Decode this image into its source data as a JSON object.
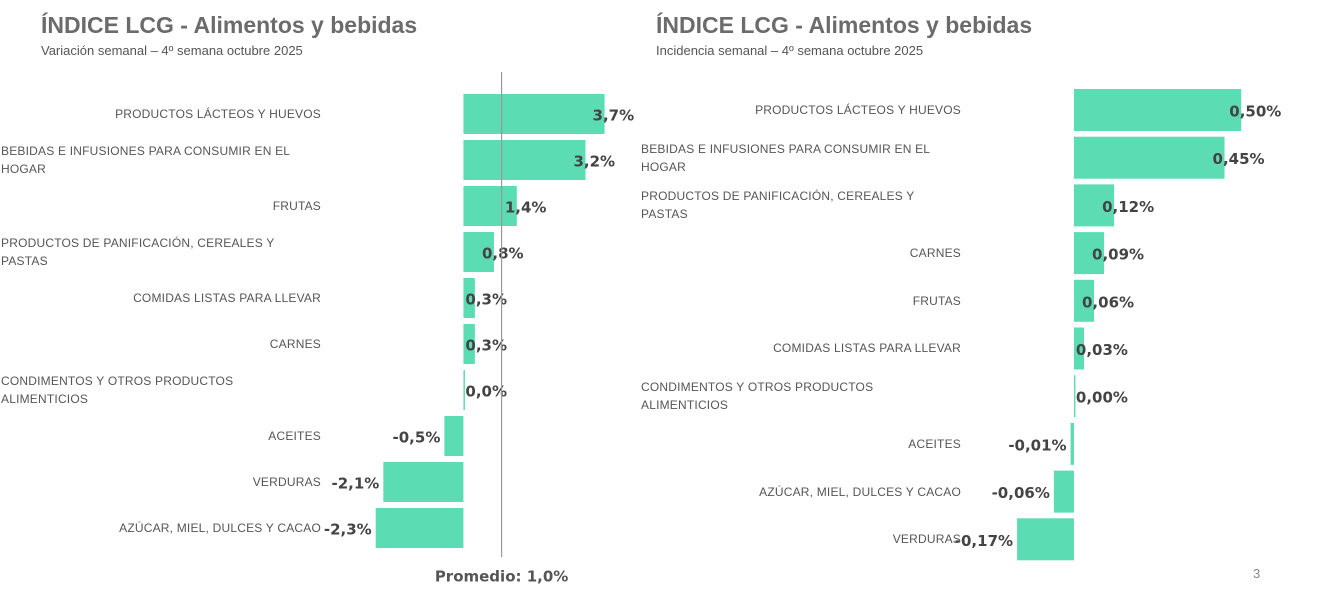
{
  "chart_data": [
    {
      "type": "hbar",
      "title": "ÍNDICE LCG - Alimentos y bebidas",
      "subtitle": "Variación semanal – 4º semana octubre 2025",
      "categories": [
        "PRODUCTOS LÁCTEOS Y HUEVOS",
        "BEBIDAS E INFUSIONES PARA CONSUMIR EN EL HOGAR",
        "FRUTAS",
        "PRODUCTOS DE PANIFICACIÓN, CEREALES Y PASTAS",
        "COMIDAS LISTAS PARA LLEVAR",
        "CARNES",
        "CONDIMENTOS Y OTROS PRODUCTOS ALIMENTICIOS",
        "ACEITES",
        "VERDURAS",
        "AZÚCAR, MIEL, DULCES Y CACAO"
      ],
      "values": [
        3.7,
        3.2,
        1.4,
        0.8,
        0.3,
        0.3,
        0.0,
        -0.5,
        -2.1,
        -2.3
      ],
      "value_labels": [
        "3,7%",
        "3,2%",
        "1,4%",
        "0,8%",
        "0,3%",
        "0,3%",
        "0,0%",
        "-0,5%",
        "-2,1%",
        "-2,3%"
      ],
      "color": "#5cdcb3",
      "xlim": [
        -3,
        4
      ],
      "average": 1.0,
      "average_label": "Promedio: 1,0%"
    },
    {
      "type": "hbar",
      "title": "ÍNDICE LCG - Alimentos y bebidas",
      "subtitle": "Incidencia semanal – 4º semana octubre 2025",
      "categories": [
        "PRODUCTOS LÁCTEOS Y HUEVOS",
        "BEBIDAS E INFUSIONES PARA CONSUMIR EN EL HOGAR",
        "PRODUCTOS DE PANIFICACIÓN, CEREALES Y PASTAS",
        "CARNES",
        "FRUTAS",
        "COMIDAS LISTAS PARA LLEVAR",
        "CONDIMENTOS Y OTROS PRODUCTOS ALIMENTICIOS",
        "ACEITES",
        "AZÚCAR, MIEL, DULCES Y CACAO",
        "VERDURAS"
      ],
      "values": [
        0.5,
        0.45,
        0.12,
        0.09,
        0.06,
        0.03,
        0.0,
        -0.01,
        -0.06,
        -0.17
      ],
      "value_labels": [
        "0,50%",
        "0,45%",
        "0,12%",
        "0,09%",
        "0,06%",
        "0,03%",
        "0,00%",
        "-0,01%",
        "-0,06%",
        "-0,17%"
      ],
      "color": "#5cdcb3",
      "xlim": [
        -0.2,
        0.55
      ]
    }
  ],
  "page_number": "3"
}
